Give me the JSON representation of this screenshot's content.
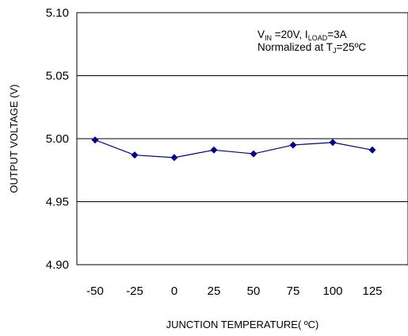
{
  "chart_data": {
    "type": "line",
    "x": [
      -50,
      -25,
      0,
      25,
      50,
      75,
      100,
      125
    ],
    "series": [
      {
        "values": [
          4.999,
          4.987,
          4.985,
          4.991,
          4.988,
          4.995,
          4.997,
          4.991
        ]
      }
    ],
    "x_tick_labels": [
      "-50",
      "-25",
      "0",
      "25",
      "50",
      "75",
      "100",
      "125"
    ],
    "y_tick_labels": [
      "5.10",
      "5.05",
      "5.00",
      "4.95",
      "4.90"
    ],
    "y_ticks": [
      5.1,
      5.05,
      5.0,
      4.95,
      4.9
    ],
    "ylim": [
      4.9,
      5.1
    ],
    "xlabel": "JUNCTION TEMPERATURE( ºC)",
    "ylabel": "OUTPUT VOLTAGE (V)",
    "grid": "horizontal",
    "annotation": {
      "line1": {
        "v": "V",
        "v_sub": "IN",
        "mid": " =20V, I",
        "i_sub": "LOAD",
        "end": "=3A"
      },
      "line2": {
        "prefix": "Normalized at T",
        "t_sub": "J",
        "suffix": "=25ºC"
      }
    },
    "colors": {
      "series": "#00008B",
      "grid": "#000000"
    }
  }
}
